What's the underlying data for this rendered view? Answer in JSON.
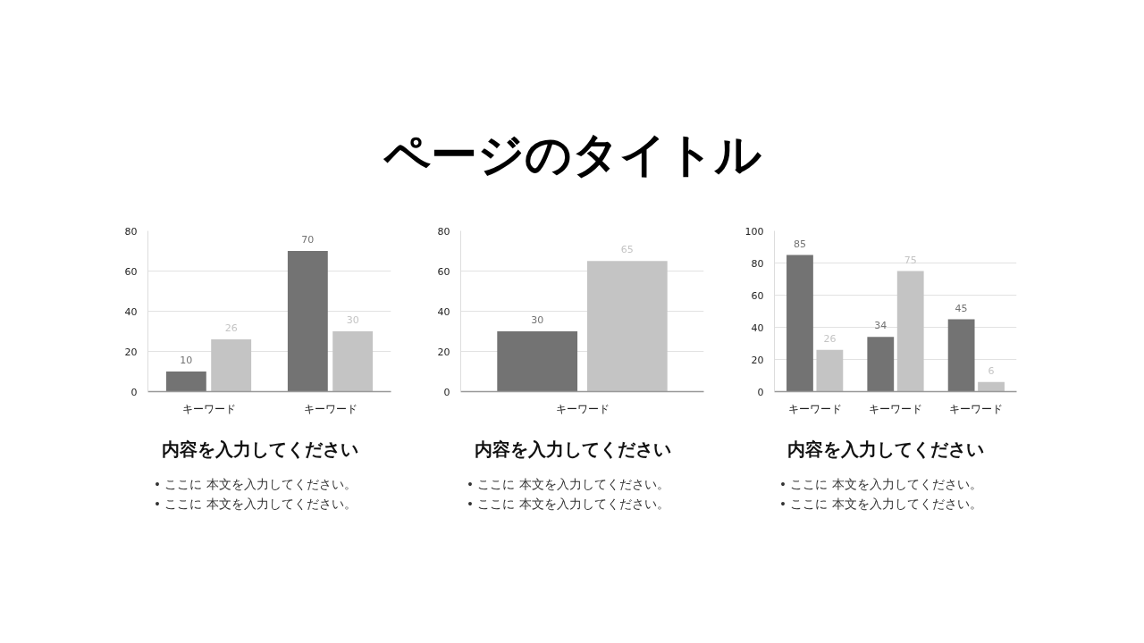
{
  "chart_data": [
    {
      "type": "other",
      "title": "ページのタイトル"
    },
    {
      "type": "bar",
      "categories": [
        "キーワード",
        "キーワード"
      ],
      "series": [
        {
          "color": "#737373",
          "values": [
            10,
            70
          ]
        },
        {
          "color": "#c4c4c4",
          "values": [
            26,
            30
          ]
        }
      ],
      "ylim": [
        0,
        80
      ],
      "yticks": [
        0,
        20,
        40,
        60,
        80
      ],
      "grid": "y",
      "data_labels": true,
      "subtitle": "内容を入力してください",
      "annotations": [
        "• ここに 本文を入力してください。",
        "• ここに 本文を入力してください。"
      ]
    },
    {
      "type": "bar",
      "categories": [
        "キーワード"
      ],
      "series": [
        {
          "color": "#737373",
          "values": [
            30
          ]
        },
        {
          "color": "#c4c4c4",
          "values": [
            65
          ]
        }
      ],
      "ylim": [
        0,
        80
      ],
      "yticks": [
        0,
        20,
        40,
        60,
        80
      ],
      "grid": "y",
      "data_labels": true,
      "subtitle": "内容を入力してください",
      "annotations": [
        "• ここに 本文を入力してください。",
        "• ここに 本文を入力してください。"
      ]
    },
    {
      "type": "bar",
      "categories": [
        "キーワード",
        "キーワード",
        "キーワード"
      ],
      "series": [
        {
          "color": "#737373",
          "values": [
            85,
            34,
            45
          ]
        },
        {
          "color": "#c4c4c4",
          "values": [
            26,
            75,
            6
          ]
        }
      ],
      "ylim": [
        0,
        100
      ],
      "yticks": [
        0,
        20,
        40,
        60,
        80,
        100
      ],
      "grid": "y",
      "data_labels": true,
      "subtitle": "内容を入力してください",
      "annotations": [
        "• ここに 本文を入力してください。",
        "• ここに 本文を入力してください。"
      ]
    }
  ]
}
